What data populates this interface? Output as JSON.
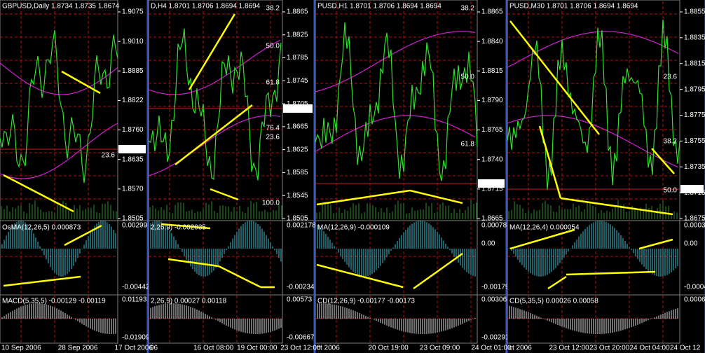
{
  "panels": [
    {
      "title": "GBPUSD,Daily  1.8734 1.8735 1.8674",
      "price_ticks": [
        "1.9075",
        "1.9010",
        "1.8885",
        "1.8822",
        "1.8760",
        "1.8635",
        "1.8570",
        "1.8505"
      ],
      "current_price": "1.8694",
      "fib_levels": [
        "23.6"
      ],
      "indicator1": {
        "label": "OsMA(12,26,5) 0.000873",
        "ticks": [
          "0.00299",
          "-0.00442"
        ]
      },
      "indicator2": {
        "label": "MACD(5,35,5) -0.00129 -0.00119",
        "ticks": [
          "0.01193",
          "-0.01909"
        ]
      },
      "time_labels": [
        "10 Sep 2006",
        "28 Sep 2006",
        "17 Oct 2006"
      ]
    },
    {
      "title": "D,H4  1.8701 1.8706 1.8694 1.8694",
      "price_ticks": [
        "1.8865",
        "1.8825",
        "1.8785",
        "1.8745",
        "1.8705",
        "1.8665",
        "1.8625",
        "1.8585",
        "1.8545",
        "1.8505"
      ],
      "current_price": "1.8694",
      "fib_levels": [
        "38.2",
        "50.0",
        "61.8",
        "76.4",
        "23.6",
        "100.0"
      ],
      "indicator1": {
        "label": "2,26,9) -0.002035",
        "ticks": [
          "0.002178",
          "-0.00234"
        ]
      },
      "indicator2": {
        "label": "2,26,9) 0.00027 0.00118",
        "ticks": [
          "0.00573",
          "-0.00667"
        ]
      },
      "time_labels": [
        "06",
        "16 Oct 08:00",
        "19 Oct 00:00",
        "23 Oct 12:00"
      ]
    },
    {
      "title": "PUSD,H1  1.8701 1.8706 1.8694 1.8694",
      "price_ticks": [
        "1.8865",
        "1.8840",
        "1.8815",
        "1.8790",
        "1.8765",
        "1.8740",
        "1.8715",
        "1.8665"
      ],
      "current_price": "1.8694",
      "fib_levels": [
        "38.2",
        "50.0",
        "61.8"
      ],
      "indicator1": {
        "label": "MA(12,26,9) -0.000109",
        "ticks": [
          "0.000787",
          "0.00",
          "-0.00179"
        ]
      },
      "indicator2": {
        "label": "CD(12,26,9) -0.00177 -0.00173",
        "ticks": [
          "0.00306",
          "-0.00291"
        ]
      },
      "time_labels": [
        "ct 2006",
        "20 Oct 19:00",
        "23 Oct 09:00",
        "24 Oct 01:00"
      ]
    },
    {
      "title": "PUSD,M30  1.8701 1.8706 1.8694 1.8694",
      "price_ticks": [
        "1.8855",
        "1.8835",
        "1.8815",
        "1.8795",
        "1.8775",
        "1.8755",
        "1.8735",
        "1.8715",
        "1.8675"
      ],
      "current_price": "1.8694",
      "fib_levels": [
        "23.6",
        "38.2",
        "50.0"
      ],
      "indicator1": {
        "label": "MA(12,26,4) 0.000054",
        "ticks": [
          "0.00037",
          "0.00",
          "-0.0004"
        ]
      },
      "indicator2": {
        "label": "CD(5,35,5) 0.00026 0.00058",
        "ticks": [
          "0.00069"
        ]
      },
      "time_labels": [
        "ct 2006",
        "23 Oct 12:00",
        "23 Oct 20:00",
        "24 Oct 04:00",
        "24 Oct 12"
      ]
    }
  ]
}
